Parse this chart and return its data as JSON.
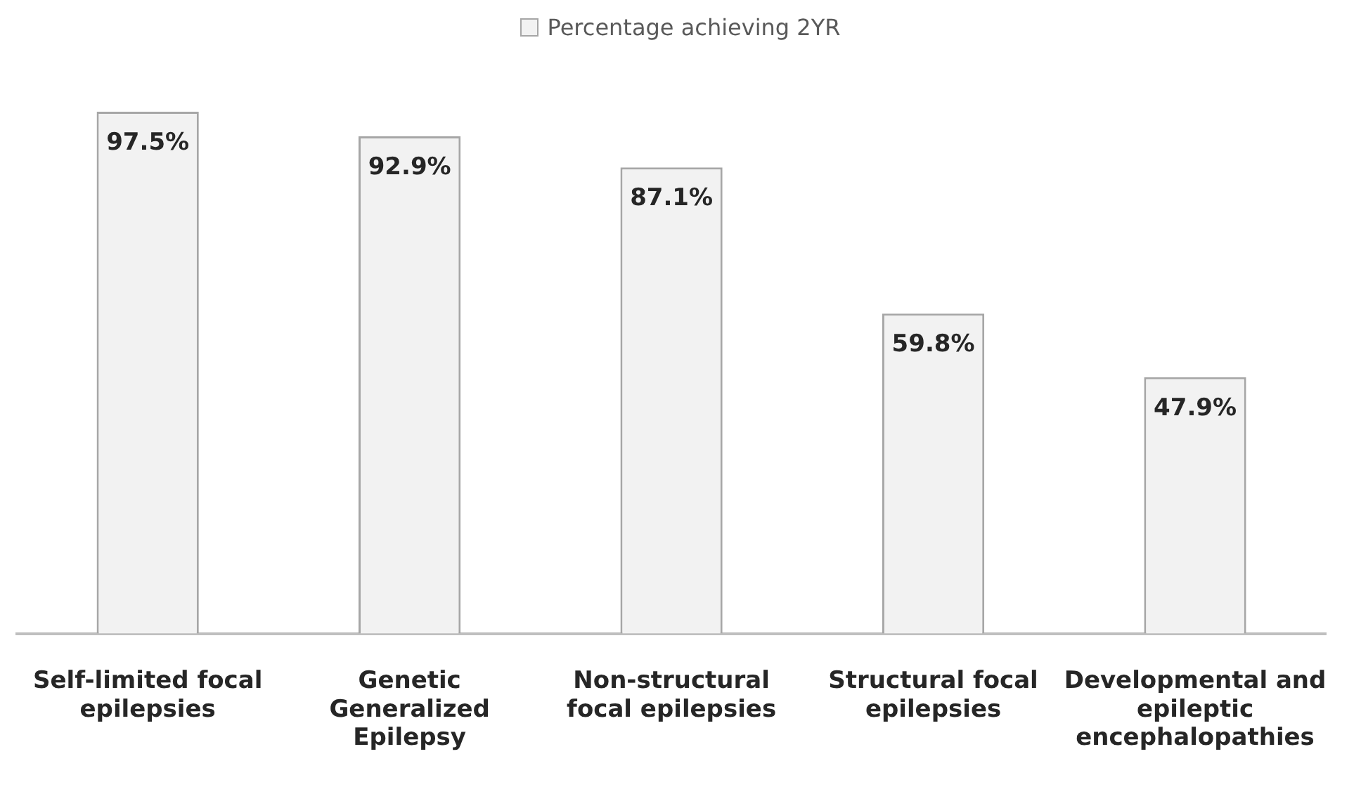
{
  "chart_data": {
    "type": "bar",
    "categories": [
      "Self-limited focal epilepsies",
      "Genetic Generalized Epilepsy",
      "Non-structural focal epilepsies",
      "Structural focal epilepsies",
      "Developmental and epileptic encephalopathies"
    ],
    "series": [
      {
        "name": "Percentage achieving 2YR",
        "color": "#f2f2f2",
        "values": [
          97.5,
          92.9,
          87.1,
          59.8,
          47.9
        ],
        "value_labels": [
          "97.5%",
          "92.9%",
          "87.1%",
          "59.8%",
          "47.9%"
        ]
      }
    ],
    "legend": "top"
  }
}
